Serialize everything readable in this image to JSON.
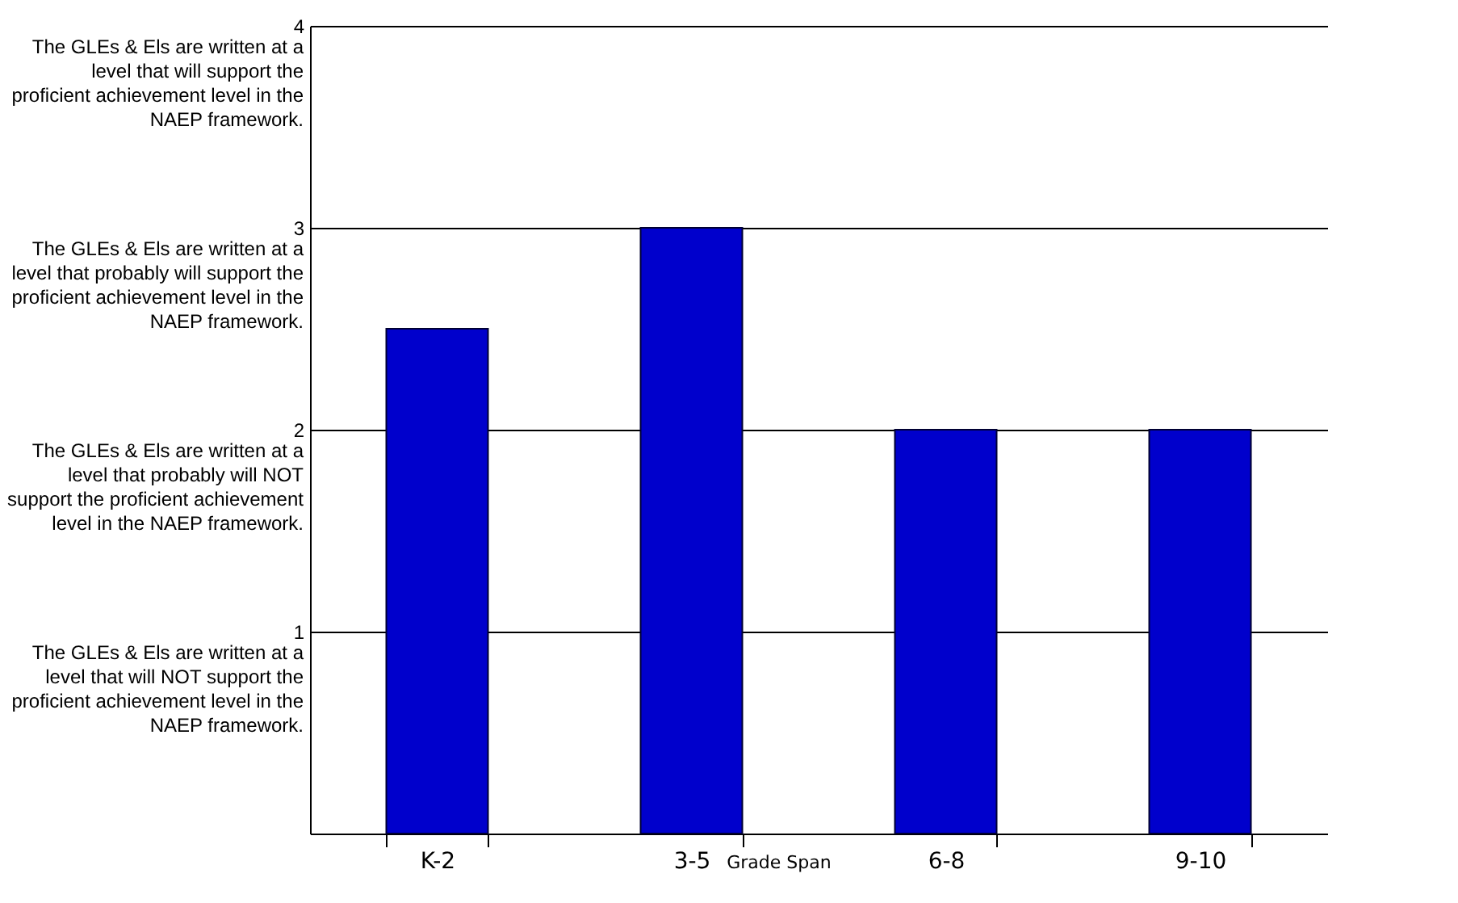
{
  "chart_data": {
    "type": "bar",
    "xlabel": "Grade Span",
    "categories": [
      "K-2",
      "3-5",
      "6-8",
      "9-10"
    ],
    "values": [
      2.5,
      3,
      2,
      2
    ],
    "color": "#0000cc",
    "ylim": [
      0,
      4
    ],
    "yticks": [
      1,
      2,
      3,
      4
    ],
    "annotations": [
      "The GLEs & Els are written at a\nlevel that will support the\nproficient achievement level in the\nNAEP framework.",
      "The GLEs & Els are written at a\nlevel that probably will support the\nproficient achievement level in the\nNAEP framework.",
      "The GLEs & Els are written at a\nlevel that probably will NOT\nsupport the proficient achievement\nlevel in the NAEP framework.",
      "The GLEs & Els are written at a\nlevel that will NOT support the\nproficient achievement level in the\nNAEP framework."
    ],
    "grid": "y"
  }
}
